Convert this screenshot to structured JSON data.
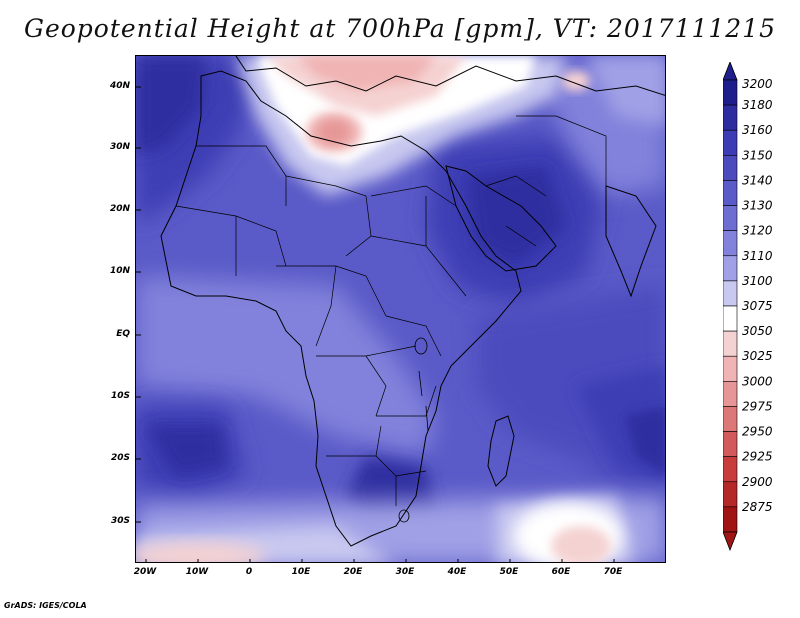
{
  "title": "Geopotential Height at 700hPa [gpm], VT: 2017111215",
  "credit": "GrADS: IGES/COLA",
  "map": {
    "variable": "Geopotential Height",
    "level": "700hPa",
    "units": "gpm",
    "valid_time": "2017111215",
    "lat_labels": [
      "40N",
      "30N",
      "20N",
      "10N",
      "EQ",
      "10S",
      "20S",
      "30S"
    ],
    "lon_labels": [
      "20W",
      "10W",
      "0",
      "10E",
      "20E",
      "30E",
      "40E",
      "50E",
      "60E",
      "70E"
    ],
    "features": [
      {
        "name": "high-center",
        "value": 3180
      },
      {
        "name": "low-center",
        "value": 3050
      }
    ]
  },
  "colorbar": {
    "levels": [
      "3200",
      "3180",
      "3160",
      "3150",
      "3140",
      "3130",
      "3120",
      "3110",
      "3100",
      "3075",
      "3050",
      "3025",
      "3000",
      "2975",
      "2950",
      "2925",
      "2900",
      "2875"
    ],
    "colors": [
      "#1e1e8c",
      "#2d2da0",
      "#3c3cb4",
      "#4b4bbe",
      "#5a5ac8",
      "#6e6ed2",
      "#8282dc",
      "#a0a0e6",
      "#c8c8f0",
      "#ffffff",
      "#f5d2d2",
      "#f0b4b4",
      "#e69696",
      "#dc7878",
      "#d25a5a",
      "#c83c3c",
      "#b42828",
      "#a01414"
    ],
    "arrow_top_color": "#1e1e8c",
    "arrow_bottom_color": "#a01414"
  }
}
